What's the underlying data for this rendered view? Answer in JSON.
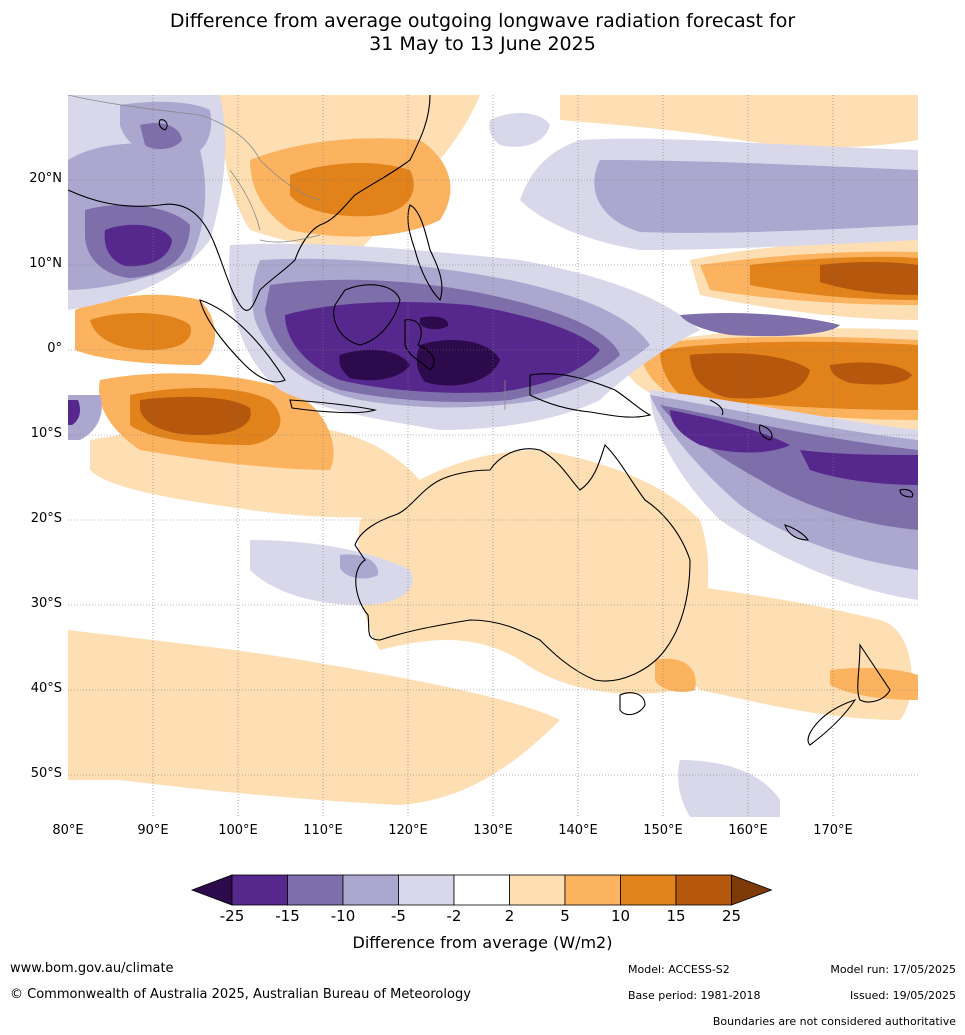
{
  "title": {
    "line1": "Difference from average outgoing longwave radiation forecast for",
    "line2": "31 May to 13 June 2025"
  },
  "map": {
    "lat_labels": [
      "20°N",
      "10°N",
      "0°",
      "10°S",
      "20°S",
      "30°S",
      "40°S",
      "50°S"
    ],
    "lon_labels": [
      "80°E",
      "90°E",
      "100°E",
      "110°E",
      "120°E",
      "130°E",
      "140°E",
      "150°E",
      "160°E",
      "170°E"
    ],
    "extent": {
      "lon": [
        80,
        180
      ],
      "lat": [
        -55,
        30
      ]
    }
  },
  "colorbar": {
    "ticks": [
      "-25",
      "-15",
      "-10",
      "-5",
      "-2",
      "2",
      "5",
      "10",
      "15",
      "25"
    ],
    "colors": [
      "#2d0a4b",
      "#56288e",
      "#7e6eaa",
      "#aca7cf",
      "#d9d8eb",
      "#ffffff",
      "#fddfb3",
      "#fbb360",
      "#e1821a",
      "#b5570c",
      "#7d3a06"
    ],
    "label": "Difference from average (W/m2)"
  },
  "footer": {
    "website": "www.bom.gov.au/climate",
    "copyright": "© Commonwealth of Australia 2025, Australian Bureau of Meteorology",
    "model": "Model: ACCESS-S2",
    "base_period": "Base period: 1981-2018",
    "model_run": "Model run: 17/05/2025",
    "issued": "Issued: 19/05/2025",
    "boundaries_note": "Boundaries are not considered authoritative"
  }
}
